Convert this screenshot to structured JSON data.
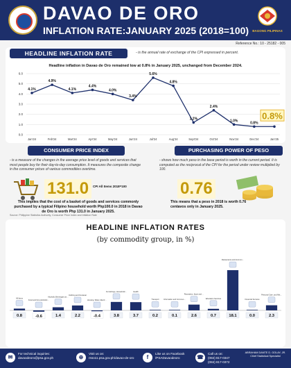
{
  "header": {
    "title": "DAVAO DE ORO",
    "subtitle": "INFLATION RATE:JANUARY 2025 (2018=100)",
    "ref_no": "Reference No.: 10 - 25182 - 005",
    "right_logo_text": "BAGONG PILIPINAS"
  },
  "headline": {
    "tag": "HEADLINE INFLATION RATE",
    "definition": "- is the annual rate of exchange of the CPI expressed in percent.",
    "caption": "Headline inflation in Davao de Oro remained low at 0.8% in January 2025, unchanged from December 2024.",
    "highlight": "0.8%"
  },
  "cpi": {
    "tag": "CONSUMER PRICE INDEX",
    "definition": "- is a measure of the changes in the average price level of goods and services that most people buy for their day-to-day consumption. It measures the composite change in the consumer prices of various commodities overtime.",
    "value": "131.0",
    "note": "CPI All Items 2018=100",
    "explanation": "This implies that the cost of a basket of goods and services commonly purchased by a typical Filipino household worth Php100.0 in 2018 in Davao de Oro is worth Php 131.0 in January 2025."
  },
  "ppp": {
    "tag": "PURCHASING POWER OF PESO",
    "definition": "- shows how much peso in the base period is worth in the current period. It is computed as the reciprocal of the CPI for the period under review multiplied by 100.",
    "value": "0.76",
    "explanation": "This means that a peso in 2018 is worth 0.76 centavos only in January 2025."
  },
  "source": "Source: Philippine Statistics Authority, Consumer Price Index and Inflation Rate",
  "rates": {
    "title": "HEADLINE INFLATION RATES",
    "subtitle": "(by commodity group, in %)"
  },
  "footer": {
    "inquiries_label": "For technical inquiries:",
    "inquiries_email": "davaodeoro@psa.gov.ph",
    "web_label": "Visit us on:",
    "web_url": "rsso11.psa.gov.ph/davao-de-oro",
    "fb_label": "Like us on Facebook",
    "fb_handle": "/PSADavaodeoro",
    "call_label": "Call us on:",
    "call_1": "(084) 817-0347",
    "call_2": "(084) 817-0372",
    "signatory": "ABRAHAM DANTE D. GOLAY, JR. Chief Statistical Specialist"
  },
  "colors": {
    "navy": "#1d2f6b",
    "line": "#1d2f6b",
    "accent_gold": "#c49a0a",
    "bar": "#1d2f6b"
  },
  "chart_data": [
    {
      "type": "line",
      "title": "Headline inflation in Davao de Oro remained low at 0.8% in January 2025, unchanged from December 2024.",
      "categories": [
        "Jan'24",
        "Feb'24",
        "Mar'24",
        "Apr'24",
        "May'24",
        "Jun'24",
        "Jul'24",
        "Aug'24",
        "Sept'24",
        "Oct'24",
        "Nov'24",
        "Dec'24",
        "Jan'25"
      ],
      "values": [
        4.1,
        4.9,
        4.1,
        4.4,
        4.0,
        3.4,
        5.6,
        4.8,
        1.2,
        2.4,
        1.0,
        0.8,
        0.8
      ],
      "value_labels": [
        "4.1%",
        "4.9%",
        "4.1%",
        "4.4%",
        "4.0%",
        "3.4%",
        "5.6%",
        "4.8%",
        "1.2%",
        "2.4%",
        "1.0%",
        "0.8%",
        "0.8%"
      ],
      "y_ticks": [
        "0.0",
        "1.0",
        "2.0",
        "3.0",
        "4.0",
        "5.0",
        "6.0"
      ],
      "ylim": [
        0,
        6
      ],
      "grid": true
    },
    {
      "type": "bar",
      "title": "HEADLINE INFLATION RATES",
      "subtitle": "(by commodity group, in %)",
      "categories": [
        "All Items",
        "Food and Non-Alcoholic Beverages",
        "Alcoholic Beverages and Tobacco",
        "Clothing and Footwear",
        "Housing, Water, Electricity, Gas and Other Fuels",
        "Furnishings, Household Equipment and Routine Household Maintenance",
        "Health",
        "Transport",
        "Information and Communication",
        "Recreation, Sport and Culture",
        "Education Services",
        "Restaurants and Accommodation Services",
        "Financial Services",
        "Personal Care, and Miscellaneous Goods and Services"
      ],
      "values": [
        0.8,
        -0.6,
        1.4,
        2.2,
        -0.4,
        3.8,
        3.7,
        0.2,
        0.1,
        2.6,
        0.7,
        18.1,
        0.0,
        2.3
      ],
      "value_labels": [
        "0.8",
        "-0.6",
        "1.4",
        "2.2",
        "-0.4",
        "3.8",
        "3.7",
        "0.2",
        "0.1",
        "2.6",
        "0.7",
        "18.1",
        "0.0",
        "2.3"
      ],
      "ylim": [
        -1,
        19
      ],
      "grid": false
    }
  ]
}
